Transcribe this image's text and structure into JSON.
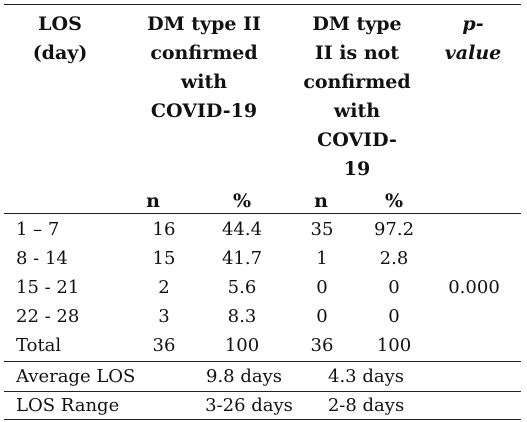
{
  "table": {
    "headers": {
      "los": [
        "LOS",
        "(day)"
      ],
      "confirmed": [
        "DM type II",
        "confirmed",
        "with",
        "COVID-19"
      ],
      "not_confirmed": [
        "DM type",
        "II is not",
        "confirmed",
        "with",
        "COVID-",
        "19"
      ],
      "pvalue": [
        "p-",
        "value"
      ]
    },
    "subheaders": [
      "n",
      "%",
      "n",
      "%"
    ],
    "rows": [
      {
        "los": "1 – 7",
        "n1": "16",
        "p1": "44.4",
        "n2": "35",
        "p2": "97.2"
      },
      {
        "los": "8 - 14",
        "n1": "15",
        "p1": "41.7",
        "n2": "1",
        "p2": "2.8"
      },
      {
        "los": "15 - 21",
        "n1": "2",
        "p1": "5.6",
        "n2": "0",
        "p2": "0"
      },
      {
        "los": "22 - 28",
        "n1": "3",
        "p1": "8.3",
        "n2": "0",
        "p2": "0"
      },
      {
        "los": "Total",
        "n1": "36",
        "p1": "100",
        "n2": "36",
        "p2": "100"
      }
    ],
    "pvalue": "0.000",
    "summary": [
      {
        "label": "Average LOS",
        "confirmed": "9.8 days",
        "not_confirmed": "4.3 days"
      },
      {
        "label": "LOS Range",
        "confirmed": "3-26 days",
        "not_confirmed": "2-8 days"
      }
    ]
  }
}
